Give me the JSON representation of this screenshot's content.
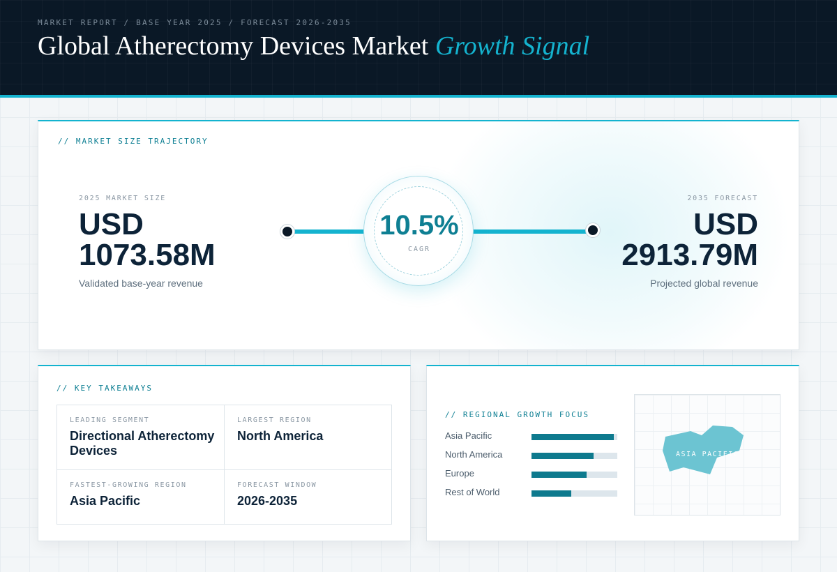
{
  "header": {
    "kicker": "MARKET REPORT / BASE YEAR 2025 / FORECAST 2026-2035",
    "title_main": "Global Atherectomy Devices Market",
    "title_accent": "Growth Signal"
  },
  "trajectory": {
    "section_label": "// MARKET SIZE TRAJECTORY",
    "start": {
      "label": "2025 MARKET SIZE",
      "currency": "USD",
      "value": "1073.58M",
      "caption": "Validated base-year revenue"
    },
    "cagr": {
      "value": "10.5%",
      "label": "CAGR"
    },
    "end": {
      "label": "2035 FORECAST",
      "currency": "USD",
      "value": "2913.79M",
      "caption": "Projected global revenue"
    }
  },
  "takeaways": {
    "section_label": "// KEY TAKEAWAYS",
    "items": [
      {
        "label": "LEADING SEGMENT",
        "value": "Directional Atherectomy Devices"
      },
      {
        "label": "LARGEST REGION",
        "value": "North America"
      },
      {
        "label": "FASTEST-GROWING REGION",
        "value": "Asia Pacific"
      },
      {
        "label": "FORECAST WINDOW",
        "value": "2026-2035"
      }
    ]
  },
  "regional": {
    "section_label": "// REGIONAL GROWTH FOCUS",
    "bars": [
      {
        "name": "Asia Pacific",
        "level": 0.96
      },
      {
        "name": "North America",
        "level": 0.72
      },
      {
        "name": "Europe",
        "level": 0.64
      },
      {
        "name": "Rest of World",
        "level": 0.46
      }
    ],
    "map_label": "ASIA PACIFIC"
  },
  "colors": {
    "accent": "#14b3cf",
    "header_bg": "#0a1826",
    "bar_fill": "#0e7a8e",
    "map_shape": "#6cc4d2"
  }
}
